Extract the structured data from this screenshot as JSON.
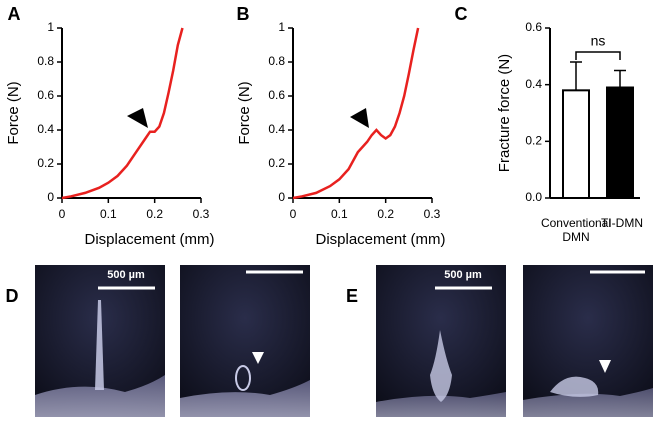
{
  "chart_data": [
    {
      "type": "line",
      "panel": "A",
      "xlabel": "Displacement (mm)",
      "ylabel": "Force (N)",
      "x": [
        0,
        0.02,
        0.05,
        0.08,
        0.1,
        0.12,
        0.14,
        0.16,
        0.18,
        0.19,
        0.2,
        0.21,
        0.22,
        0.23,
        0.24,
        0.25,
        0.26
      ],
      "series": [
        {
          "color": "#e8211f",
          "values": [
            0,
            0.01,
            0.03,
            0.06,
            0.09,
            0.13,
            0.19,
            0.27,
            0.35,
            0.39,
            0.39,
            0.42,
            0.5,
            0.62,
            0.75,
            0.9,
            1.0
          ]
        }
      ],
      "xlim": [
        0,
        0.3
      ],
      "ylim": [
        0,
        1
      ],
      "xticks": [
        0,
        0.1,
        0.2,
        0.3
      ],
      "yticks": [
        0,
        0.2,
        0.4,
        0.6,
        0.8,
        1
      ]
    },
    {
      "type": "line",
      "panel": "B",
      "xlabel": "Displacement (mm)",
      "ylabel": "Force (N)",
      "x": [
        0,
        0.02,
        0.05,
        0.08,
        0.1,
        0.12,
        0.13,
        0.14,
        0.15,
        0.16,
        0.17,
        0.18,
        0.19,
        0.2,
        0.21,
        0.22,
        0.23,
        0.24,
        0.25,
        0.26,
        0.27
      ],
      "series": [
        {
          "color": "#e8211f",
          "values": [
            0,
            0.01,
            0.03,
            0.07,
            0.11,
            0.17,
            0.22,
            0.27,
            0.3,
            0.33,
            0.37,
            0.4,
            0.37,
            0.35,
            0.37,
            0.42,
            0.5,
            0.6,
            0.73,
            0.87,
            1.0
          ]
        }
      ],
      "xlim": [
        0,
        0.3
      ],
      "ylim": [
        0,
        1
      ],
      "xticks": [
        0,
        0.1,
        0.2,
        0.3
      ],
      "yticks": [
        0,
        0.2,
        0.4,
        0.6,
        0.8,
        1
      ]
    },
    {
      "type": "bar",
      "panel": "C",
      "ylabel": "Fracture force (N)",
      "categories": [
        "Conventional DMN",
        "TI-DMN"
      ],
      "values": [
        0.38,
        0.39
      ],
      "errors": [
        0.1,
        0.06
      ],
      "colors": [
        "#ffffff",
        "#000000"
      ],
      "ylim": [
        0,
        0.6
      ],
      "yticks": [
        {
          "value": 0,
          "label": "0.0"
        },
        0.2,
        0.4,
        0.6
      ],
      "annotation": "ns"
    }
  ],
  "photos": [
    {
      "panel": "D",
      "scale_label": "500 µm"
    },
    {
      "panel": "E",
      "scale_label": "500 µm"
    }
  ]
}
